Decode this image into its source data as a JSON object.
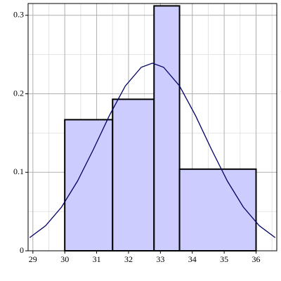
{
  "chart_data": {
    "type": "histogram",
    "bins": [
      30,
      31.5,
      32.8,
      33.6,
      36
    ],
    "values": [
      0.167,
      0.193,
      0.312,
      0.104
    ],
    "color": "#ccccff",
    "edge_color": "#000000",
    "curve": {
      "color": "#000066",
      "x": [
        28.9,
        29.4,
        29.9,
        30.4,
        30.9,
        31.4,
        31.9,
        32.4,
        32.75,
        33.1,
        33.6,
        34.1,
        34.6,
        35.1,
        35.6,
        36.1,
        36.6
      ],
      "values": [
        0.0168,
        0.032,
        0.0557,
        0.0888,
        0.1293,
        0.1723,
        0.21,
        0.2338,
        0.239,
        0.2338,
        0.21,
        0.1723,
        0.1293,
        0.0888,
        0.0557,
        0.032,
        0.0168
      ]
    },
    "xlim": [
      28.85,
      36.65
    ],
    "ylim": [
      0,
      0.315
    ],
    "xticks": [
      29,
      30,
      31,
      32,
      33,
      34,
      35,
      36
    ],
    "yticks": [
      0,
      0.1,
      0.2,
      0.3
    ],
    "xminor": [
      29.5,
      30.5,
      31.5,
      32.5,
      33.5,
      34.5,
      35.5,
      36.5
    ],
    "yminor": [
      0.05,
      0.15,
      0.25
    ],
    "grid": true
  }
}
